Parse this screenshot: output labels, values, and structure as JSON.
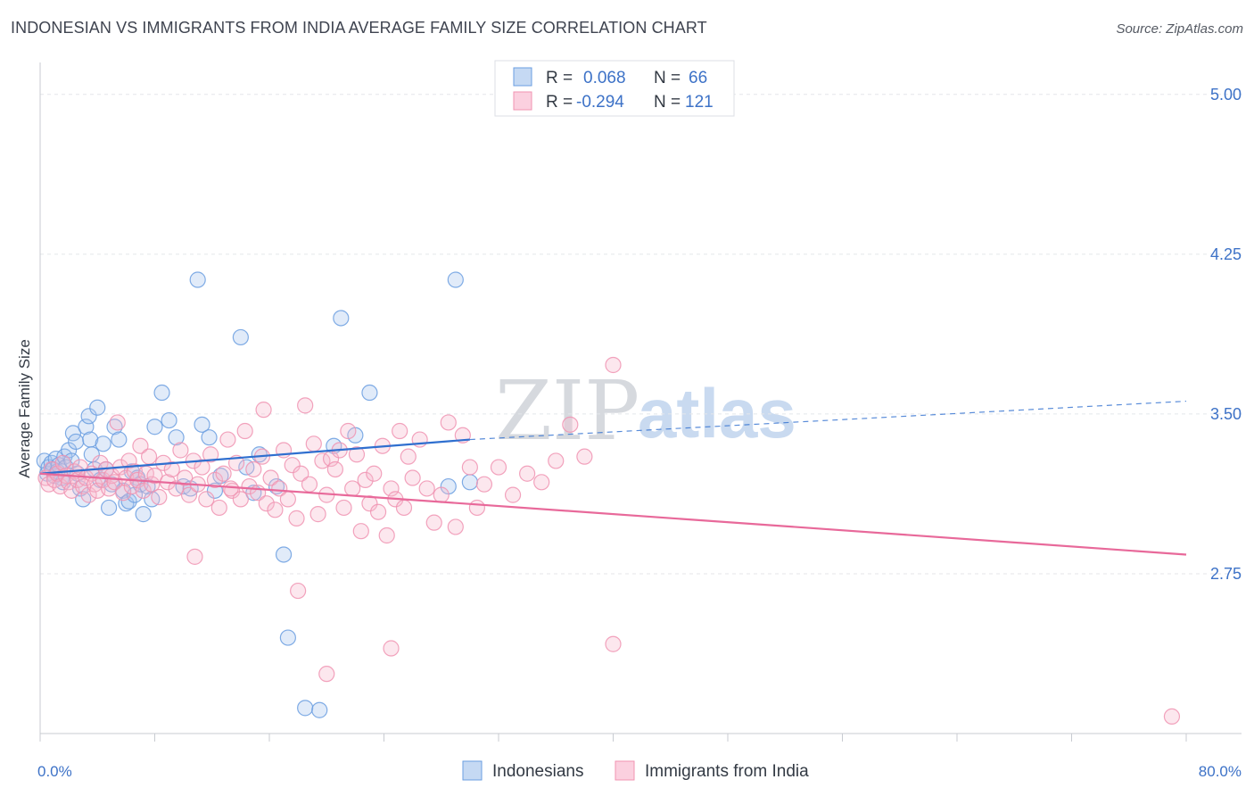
{
  "header": {
    "title": "INDONESIAN VS IMMIGRANTS FROM INDIA AVERAGE FAMILY SIZE CORRELATION CHART",
    "source": "Source: ZipAtlas.com"
  },
  "watermark": {
    "part1": "ZIP",
    "part2": "atlas"
  },
  "legend": {
    "r_label": "R =",
    "n_label": "N =",
    "rows": [
      {
        "name": "Indonesians",
        "r": "0.068",
        "n": "66",
        "color": "#6a9ee0"
      },
      {
        "name": "Immigrants from India",
        "r": "-0.294",
        "n": "121",
        "color": "#f093b2"
      }
    ]
  },
  "chart_data": {
    "type": "scatter",
    "title": "INDONESIAN VS IMMIGRANTS FROM INDIA AVERAGE FAMILY SIZE CORRELATION CHART",
    "xlabel": "",
    "ylabel": "Average Family Size",
    "xlim": [
      0,
      80
    ],
    "ylim": [
      2.0,
      5.15
    ],
    "x_tick_labels": [
      {
        "value": 0,
        "label": "0.0%"
      },
      {
        "value": 80,
        "label": "80.0%"
      }
    ],
    "y_ticks": [
      {
        "value": 2.75,
        "label": "2.75"
      },
      {
        "value": 3.5,
        "label": "3.50"
      },
      {
        "value": 4.25,
        "label": "4.25"
      },
      {
        "value": 5.0,
        "label": "5.00"
      }
    ],
    "series": [
      {
        "name": "Indonesians",
        "color": "#6a9ee0",
        "line_color": "#2f6fcf",
        "trend": {
          "x0": 0,
          "y0": 3.22,
          "x1": 30,
          "y1": 3.38,
          "dash_to_x": 80,
          "dash_to_y": 3.56
        },
        "points": [
          [
            0.3,
            3.28
          ],
          [
            0.5,
            3.22
          ],
          [
            0.6,
            3.25
          ],
          [
            0.8,
            3.27
          ],
          [
            0.9,
            3.24
          ],
          [
            1.0,
            3.21
          ],
          [
            1.1,
            3.29
          ],
          [
            1.2,
            3.23
          ],
          [
            1.3,
            3.26
          ],
          [
            1.5,
            3.2
          ],
          [
            1.6,
            3.18
          ],
          [
            1.7,
            3.3
          ],
          [
            1.8,
            3.25
          ],
          [
            2.0,
            3.33
          ],
          [
            2.2,
            3.28
          ],
          [
            2.3,
            3.41
          ],
          [
            2.5,
            3.37
          ],
          [
            2.6,
            3.22
          ],
          [
            2.8,
            3.15
          ],
          [
            3.0,
            3.1
          ],
          [
            3.2,
            3.44
          ],
          [
            3.4,
            3.49
          ],
          [
            3.5,
            3.38
          ],
          [
            3.6,
            3.31
          ],
          [
            3.8,
            3.24
          ],
          [
            4.0,
            3.53
          ],
          [
            4.2,
            3.19
          ],
          [
            4.4,
            3.36
          ],
          [
            4.6,
            3.24
          ],
          [
            4.8,
            3.06
          ],
          [
            5.0,
            3.17
          ],
          [
            5.2,
            3.44
          ],
          [
            5.5,
            3.38
          ],
          [
            5.8,
            3.14
          ],
          [
            6.0,
            3.08
          ],
          [
            6.2,
            3.09
          ],
          [
            6.4,
            3.23
          ],
          [
            6.6,
            3.12
          ],
          [
            6.8,
            3.2
          ],
          [
            7.0,
            3.17
          ],
          [
            7.2,
            3.03
          ],
          [
            7.5,
            3.16
          ],
          [
            7.8,
            3.1
          ],
          [
            8.0,
            3.44
          ],
          [
            8.5,
            3.6
          ],
          [
            9.0,
            3.47
          ],
          [
            9.5,
            3.39
          ],
          [
            10.0,
            3.16
          ],
          [
            10.5,
            3.15
          ],
          [
            11.0,
            4.13
          ],
          [
            11.3,
            3.45
          ],
          [
            11.8,
            3.39
          ],
          [
            12.2,
            3.14
          ],
          [
            12.6,
            3.21
          ],
          [
            14.0,
            3.86
          ],
          [
            14.4,
            3.25
          ],
          [
            14.9,
            3.13
          ],
          [
            15.3,
            3.31
          ],
          [
            16.5,
            3.16
          ],
          [
            17.0,
            2.84
          ],
          [
            17.3,
            2.45
          ],
          [
            18.5,
            2.12
          ],
          [
            19.5,
            2.11
          ],
          [
            21.0,
            3.95
          ],
          [
            22.0,
            3.4
          ],
          [
            23.0,
            3.6
          ],
          [
            28.5,
            3.16
          ],
          [
            29.0,
            4.13
          ],
          [
            30.0,
            3.18
          ],
          [
            20.5,
            3.35
          ]
        ]
      },
      {
        "name": "Immigrants from India",
        "color": "#f093b2",
        "line_color": "#e8699a",
        "trend": {
          "x0": 0,
          "y0": 3.22,
          "x1": 80,
          "y1": 2.84
        },
        "points": [
          [
            0.4,
            3.2
          ],
          [
            0.6,
            3.17
          ],
          [
            0.8,
            3.24
          ],
          [
            1.0,
            3.19
          ],
          [
            1.2,
            3.22
          ],
          [
            1.4,
            3.16
          ],
          [
            1.6,
            3.27
          ],
          [
            1.8,
            3.21
          ],
          [
            2.0,
            3.18
          ],
          [
            2.2,
            3.14
          ],
          [
            2.4,
            3.23
          ],
          [
            2.6,
            3.19
          ],
          [
            2.8,
            3.25
          ],
          [
            3.0,
            3.16
          ],
          [
            3.2,
            3.2
          ],
          [
            3.4,
            3.12
          ],
          [
            3.6,
            3.22
          ],
          [
            3.8,
            3.17
          ],
          [
            4.0,
            3.14
          ],
          [
            4.2,
            3.27
          ],
          [
            4.4,
            3.19
          ],
          [
            4.6,
            3.24
          ],
          [
            4.8,
            3.15
          ],
          [
            5.0,
            3.21
          ],
          [
            5.2,
            3.18
          ],
          [
            5.4,
            3.46
          ],
          [
            5.6,
            3.25
          ],
          [
            5.8,
            3.13
          ],
          [
            6.0,
            3.2
          ],
          [
            6.2,
            3.28
          ],
          [
            6.4,
            3.16
          ],
          [
            6.6,
            3.23
          ],
          [
            6.8,
            3.19
          ],
          [
            7.0,
            3.35
          ],
          [
            7.2,
            3.14
          ],
          [
            7.4,
            3.22
          ],
          [
            7.6,
            3.3
          ],
          [
            7.8,
            3.17
          ],
          [
            8.0,
            3.21
          ],
          [
            8.3,
            3.11
          ],
          [
            8.6,
            3.27
          ],
          [
            8.9,
            3.18
          ],
          [
            9.2,
            3.24
          ],
          [
            9.5,
            3.15
          ],
          [
            9.8,
            3.33
          ],
          [
            10.1,
            3.2
          ],
          [
            10.4,
            3.12
          ],
          [
            10.7,
            3.28
          ],
          [
            11.0,
            3.17
          ],
          [
            11.3,
            3.25
          ],
          [
            11.6,
            3.1
          ],
          [
            11.9,
            3.31
          ],
          [
            12.2,
            3.19
          ],
          [
            12.5,
            3.06
          ],
          [
            12.8,
            3.22
          ],
          [
            13.1,
            3.38
          ],
          [
            13.4,
            3.14
          ],
          [
            13.7,
            3.27
          ],
          [
            14.0,
            3.1
          ],
          [
            14.3,
            3.42
          ],
          [
            14.6,
            3.16
          ],
          [
            14.9,
            3.24
          ],
          [
            15.2,
            3.13
          ],
          [
            15.5,
            3.3
          ],
          [
            15.8,
            3.08
          ],
          [
            16.1,
            3.2
          ],
          [
            16.4,
            3.05
          ],
          [
            16.7,
            3.15
          ],
          [
            17.0,
            3.33
          ],
          [
            17.3,
            3.1
          ],
          [
            17.6,
            3.26
          ],
          [
            17.9,
            3.01
          ],
          [
            18.2,
            3.22
          ],
          [
            18.5,
            3.54
          ],
          [
            18.8,
            3.17
          ],
          [
            19.1,
            3.36
          ],
          [
            19.4,
            3.03
          ],
          [
            19.7,
            3.28
          ],
          [
            20.0,
            3.12
          ],
          [
            20.3,
            3.29
          ],
          [
            20.6,
            3.24
          ],
          [
            20.9,
            3.33
          ],
          [
            21.2,
            3.06
          ],
          [
            21.5,
            3.42
          ],
          [
            21.8,
            3.15
          ],
          [
            22.1,
            3.31
          ],
          [
            22.4,
            2.95
          ],
          [
            22.7,
            3.19
          ],
          [
            23.0,
            3.08
          ],
          [
            23.3,
            3.22
          ],
          [
            23.6,
            3.04
          ],
          [
            23.9,
            3.35
          ],
          [
            24.2,
            2.93
          ],
          [
            24.5,
            3.15
          ],
          [
            24.8,
            3.1
          ],
          [
            25.1,
            3.42
          ],
          [
            25.4,
            3.06
          ],
          [
            25.7,
            3.3
          ],
          [
            26.0,
            3.2
          ],
          [
            26.5,
            3.38
          ],
          [
            27.0,
            3.15
          ],
          [
            27.5,
            2.99
          ],
          [
            28.0,
            3.12
          ],
          [
            28.5,
            3.46
          ],
          [
            29.0,
            2.97
          ],
          [
            29.5,
            3.4
          ],
          [
            30.0,
            3.25
          ],
          [
            31.0,
            3.17
          ],
          [
            32.0,
            3.25
          ],
          [
            33.0,
            3.12
          ],
          [
            34.0,
            3.22
          ],
          [
            35.0,
            3.18
          ],
          [
            36.0,
            3.28
          ],
          [
            37.0,
            3.45
          ],
          [
            38.0,
            3.3
          ],
          [
            40.0,
            3.73
          ],
          [
            18.0,
            2.67
          ],
          [
            20.0,
            2.28
          ],
          [
            24.5,
            2.4
          ],
          [
            40.0,
            2.42
          ],
          [
            10.8,
            2.83
          ],
          [
            79.0,
            2.08
          ],
          [
            30.5,
            3.06
          ],
          [
            15.6,
            3.52
          ],
          [
            13.3,
            3.15
          ]
        ]
      }
    ]
  }
}
